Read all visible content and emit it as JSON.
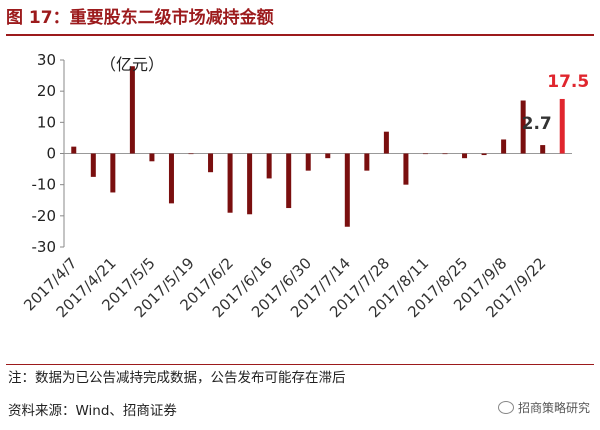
{
  "header": {
    "title": "图 17：重要股东二级市场减持金额"
  },
  "footer": {
    "note": "注：数据为已公告减持完成数据，公告发布可能存在滞后",
    "source": "资料来源：Wind、招商证券",
    "watermark": "招商策略研究",
    "watermark_icon": "wechat-icon"
  },
  "colors": {
    "bar": "#7a0f0f",
    "highlight": "#e0262e",
    "title": "#9c1a1c"
  },
  "chart_data": {
    "type": "bar",
    "unit_label": "（亿元）",
    "ylim": [
      -30,
      30
    ],
    "yticks": [
      30,
      20,
      10,
      0,
      -10,
      -20,
      -30
    ],
    "grid": false,
    "xticklabels": [
      "2017/4/7",
      "2017/4/21",
      "2017/5/5",
      "2017/5/19",
      "2017/6/2",
      "2017/6/16",
      "2017/6/30",
      "2017/7/14",
      "2017/7/28",
      "2017/8/11",
      "2017/8/25",
      "2017/9/8",
      "2017/9/22"
    ],
    "values": [
      2.2,
      -7.5,
      -12.5,
      28,
      -2.5,
      -16,
      0,
      -6,
      -19,
      -19.5,
      -8,
      -17.5,
      -5.5,
      -1.5,
      -23.5,
      -5.5,
      7,
      -10,
      0,
      0,
      -1.5,
      -0.5,
      4.5,
      17,
      2.7,
      17.5
    ],
    "highlight_index": 25,
    "data_labels": [
      {
        "index": 24,
        "text": "2.7",
        "color": "#333333"
      },
      {
        "index": 25,
        "text": "17.5",
        "color": "#e0262e"
      }
    ]
  }
}
